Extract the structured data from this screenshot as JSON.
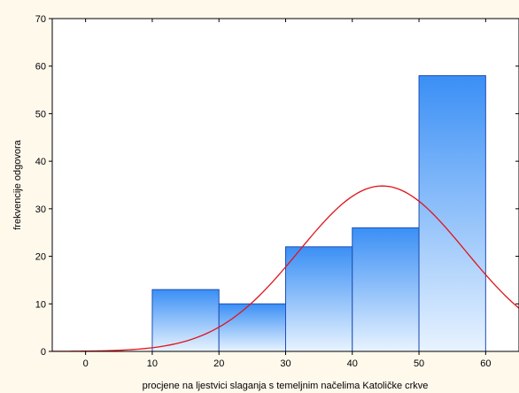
{
  "chart_data": {
    "type": "bar",
    "title": "",
    "xlabel": "procjene na ljestvici slaganja s temeljnim načelima Katoličke crkve",
    "ylabel": "frekvencije odgovora",
    "xlim": [
      -5,
      65
    ],
    "ylim": [
      0,
      70
    ],
    "xticks": [
      0,
      10,
      20,
      30,
      40,
      50,
      60
    ],
    "yticks": [
      0,
      10,
      20,
      30,
      40,
      50,
      60,
      70
    ],
    "bins": [
      {
        "from": 10,
        "to": 20,
        "count": 13
      },
      {
        "from": 20,
        "to": 30,
        "count": 10
      },
      {
        "from": 30,
        "to": 40,
        "count": 22
      },
      {
        "from": 40,
        "to": 50,
        "count": 26
      },
      {
        "from": 50,
        "to": 60,
        "count": 58
      }
    ],
    "normal_curve": {
      "mean": 44.5,
      "sd": 12.5,
      "peak": 34.8
    },
    "grid": false,
    "colors": {
      "background": "#fff9ec",
      "plot_background": "#ffffff",
      "bar_top": "#3a8ff5",
      "bar_bottom": "#e8f3ff",
      "bar_edge": "#1f4fb5",
      "curve": "#e0141c"
    }
  }
}
